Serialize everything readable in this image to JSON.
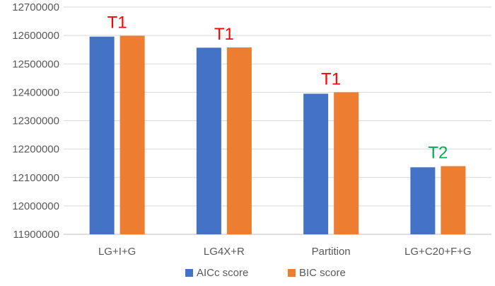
{
  "chart_data": {
    "type": "bar",
    "title": "",
    "xlabel": "",
    "ylabel": "",
    "categories": [
      "LG+I+G",
      "LG4X+R",
      "Partition",
      "LG+C20+F+G"
    ],
    "series": [
      {
        "name": "AICc score",
        "color": "#4472C4",
        "values": [
          12596000,
          12557000,
          12395000,
          12136000
        ]
      },
      {
        "name": "BIC score",
        "color": "#ED7D31",
        "values": [
          12599000,
          12558000,
          12400000,
          12140000
        ]
      }
    ],
    "ylim": [
      11900000,
      12700000
    ],
    "yticks": [
      11900000,
      12000000,
      12100000,
      12200000,
      12300000,
      12400000,
      12500000,
      12600000,
      12700000
    ],
    "ytick_labels": [
      "11900000",
      "12000000",
      "12100000",
      "12200000",
      "12300000",
      "12400000",
      "12500000",
      "12600000",
      "12700000"
    ],
    "grid": true,
    "legend_position": "bottom",
    "annotations": [
      {
        "category": "LG+I+G",
        "text": "T1",
        "color": "#FF0000"
      },
      {
        "category": "LG4X+R",
        "text": "T1",
        "color": "#FF0000"
      },
      {
        "category": "Partition",
        "text": "T1",
        "color": "#FF0000"
      },
      {
        "category": "LG+C20+F+G",
        "text": "T2",
        "color": "#00B050"
      }
    ],
    "gridline_color": "#D9D9D9",
    "axis_color": "#BFBFBF"
  }
}
